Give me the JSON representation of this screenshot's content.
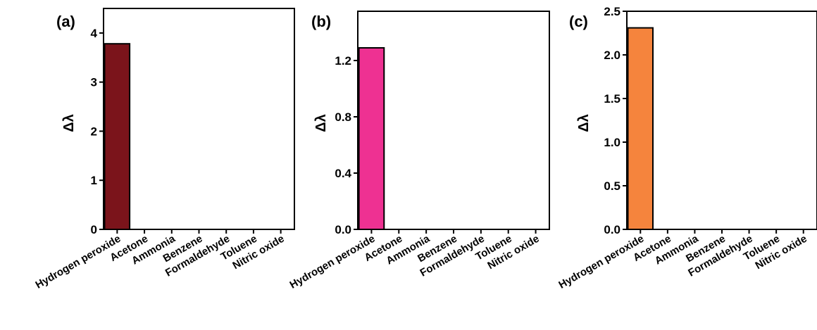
{
  "colors": {
    "axis": "#000000",
    "background": "#ffffff"
  },
  "chart_data": [
    {
      "type": "bar",
      "panel": "(a)",
      "ylabel": "Δλ",
      "ylim": [
        0,
        4.5
      ],
      "yticks": [
        0,
        1,
        2,
        3,
        4
      ],
      "ytick_labels": [
        "0",
        "1",
        "2",
        "3",
        "4"
      ],
      "categories": [
        "Hydrogen peroxide",
        "Acetone",
        "Ammonia",
        "Benzene",
        "Formaldehyde",
        "Toluene",
        "Nitric oxide"
      ],
      "values": [
        3.78,
        0,
        0,
        0,
        0,
        0,
        0
      ],
      "bar_color": "#7b141b",
      "grid": false
    },
    {
      "type": "bar",
      "panel": "(b)",
      "ylabel": "Δλ",
      "ylim": [
        0,
        1.55
      ],
      "yticks": [
        0,
        0.4,
        0.8,
        1.2
      ],
      "ytick_labels": [
        "0.0",
        "0.4",
        "0.8",
        "1.2"
      ],
      "categories": [
        "Hydrogen peroxide",
        "Acetone",
        "Ammonia",
        "Benzene",
        "Formaldehyde",
        "Toluene",
        "Nitric oxide"
      ],
      "values": [
        1.29,
        0,
        0,
        0,
        0,
        0,
        0
      ],
      "bar_color": "#ee3192",
      "grid": false
    },
    {
      "type": "bar",
      "panel": "(c)",
      "ylabel": "Δλ",
      "ylim": [
        0,
        2.5
      ],
      "yticks": [
        0,
        0.5,
        1.0,
        1.5,
        2.0,
        2.5
      ],
      "ytick_labels": [
        "0.0",
        "0.5",
        "1.0",
        "1.5",
        "2.0",
        "2.5"
      ],
      "categories": [
        "Hydrogen peroxide",
        "Acetone",
        "Ammonia",
        "Benzene",
        "Formaldehyde",
        "Toluene",
        "Nitric oxide"
      ],
      "values": [
        2.31,
        0,
        0,
        0,
        0,
        0,
        0
      ],
      "bar_color": "#f5843d",
      "grid": false
    }
  ]
}
